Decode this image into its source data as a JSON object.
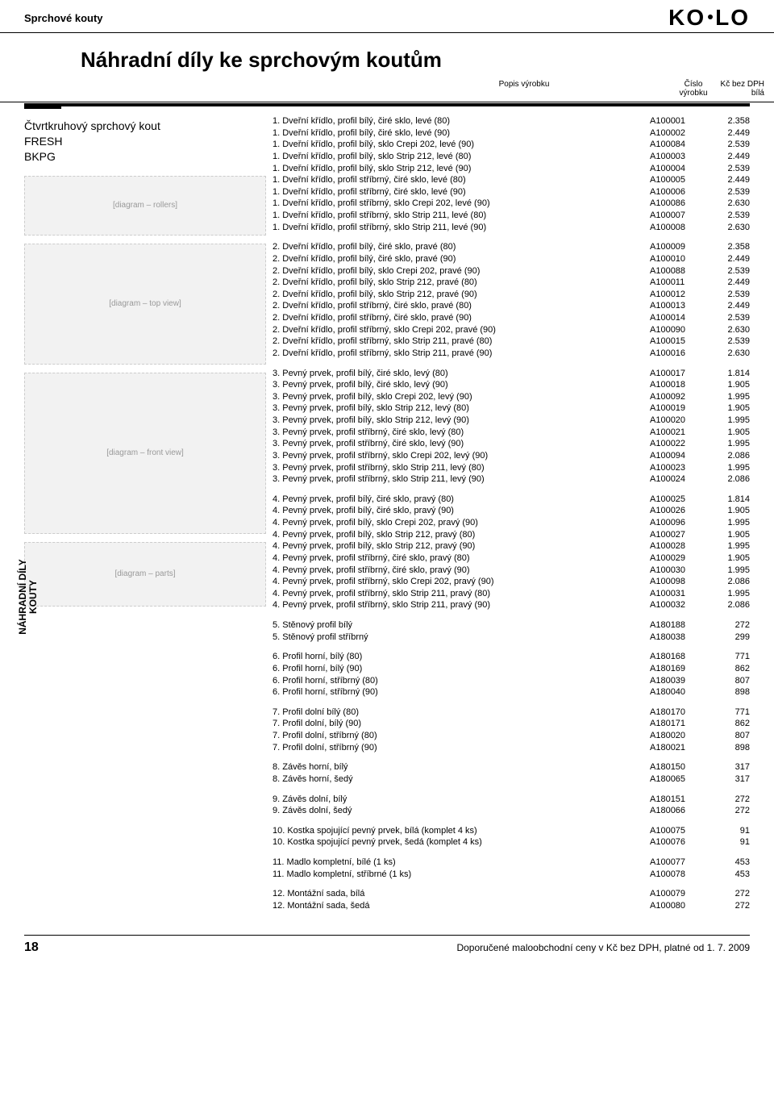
{
  "crumb": "Sprchové kouty",
  "logo": "KOLO",
  "heading": "Náhradní díly ke sprchovým koutům",
  "columns": {
    "c1": "Popis výrobku",
    "c2a": "Číslo",
    "c2b": "výrobku",
    "c3a": "Kč bez DPH",
    "c3b": "bílá"
  },
  "product": {
    "l1": "Čtvrtkruhový sprchový kout",
    "l2": "FRESH",
    "l3": "BKPG"
  },
  "diagrams": {
    "d1": "[diagram – rollers]",
    "d2": "[diagram – top view]",
    "d3": "[diagram – front view]",
    "d4": "[diagram – parts]"
  },
  "side_label": {
    "l1": "NÁHRADNÍ DÍLY",
    "l2": "KOUTY"
  },
  "groups": [
    [
      {
        "d": "1. Dveřní křídlo, profil bílý, čiré sklo, levé (80)",
        "c": "A100001",
        "p": "2.358"
      },
      {
        "d": "1. Dveřní křídlo, profil bílý, čiré sklo, levé (90)",
        "c": "A100002",
        "p": "2.449"
      },
      {
        "d": "1. Dveřní křídlo, profil bílý, sklo Crepi 202, levé (90)",
        "c": "A100084",
        "p": "2.539"
      },
      {
        "d": "1. Dveřní křídlo, profil bílý, sklo Strip 212, levé (80)",
        "c": "A100003",
        "p": "2.449"
      },
      {
        "d": "1. Dveřní křídlo, profil bílý, sklo Strip 212, levé (90)",
        "c": "A100004",
        "p": "2.539"
      },
      {
        "d": "1. Dveřní křídlo, profil stříbrný, čiré sklo, levé (80)",
        "c": "A100005",
        "p": "2.449"
      },
      {
        "d": "1. Dveřní křídlo, profil stříbrný, čiré sklo, levé (90)",
        "c": "A100006",
        "p": "2.539"
      },
      {
        "d": "1. Dveřní křídlo, profil stříbrný, sklo Crepi 202, levé (90)",
        "c": "A100086",
        "p": "2.630"
      },
      {
        "d": "1. Dveřní křídlo, profil stříbrný, sklo Strip 211, levé (80)",
        "c": "A100007",
        "p": "2.539"
      },
      {
        "d": "1. Dveřní křídlo, profil stříbrný, sklo Strip 211, levé (90)",
        "c": "A100008",
        "p": "2.630"
      }
    ],
    [
      {
        "d": "2. Dveřní křídlo, profil bílý, čiré sklo, pravé (80)",
        "c": "A100009",
        "p": "2.358"
      },
      {
        "d": "2. Dveřní křídlo, profil bílý, čiré sklo, pravé (90)",
        "c": "A100010",
        "p": "2.449"
      },
      {
        "d": "2. Dveřní křídlo, profil bílý, sklo Crepi 202, pravé (90)",
        "c": "A100088",
        "p": "2.539"
      },
      {
        "d": "2. Dveřní křídlo, profil bílý, sklo Strip 212, pravé (80)",
        "c": "A100011",
        "p": "2.449"
      },
      {
        "d": "2. Dveřní křídlo, profil bílý, sklo Strip 212, pravé (90)",
        "c": "A100012",
        "p": "2.539"
      },
      {
        "d": "2. Dveřní křídlo, profil stříbrný, čiré sklo, pravé (80)",
        "c": "A100013",
        "p": "2.449"
      },
      {
        "d": "2. Dveřní křídlo, profil stříbrný, čiré sklo, pravé (90)",
        "c": "A100014",
        "p": "2.539"
      },
      {
        "d": "2. Dveřní křídlo, profil stříbrný, sklo Crepi 202, pravé (90)",
        "c": "A100090",
        "p": "2.630"
      },
      {
        "d": "2. Dveřní křídlo, profil stříbrný, sklo Strip 211, pravé (80)",
        "c": "A100015",
        "p": "2.539"
      },
      {
        "d": "2. Dveřní křídlo, profil stříbrný, sklo Strip 211, pravé (90)",
        "c": "A100016",
        "p": "2.630"
      }
    ],
    [
      {
        "d": "3. Pevný prvek, profil bílý, čiré sklo, levý (80)",
        "c": "A100017",
        "p": "1.814"
      },
      {
        "d": "3. Pevný prvek, profil bílý, čiré sklo, levý (90)",
        "c": "A100018",
        "p": "1.905"
      },
      {
        "d": "3. Pevný prvek, profil bílý, sklo Crepi 202, levý (90)",
        "c": "A100092",
        "p": "1.995"
      },
      {
        "d": "3. Pevný prvek, profil bílý, sklo Strip 212, levý (80)",
        "c": "A100019",
        "p": "1.905"
      },
      {
        "d": "3. Pevný prvek, profil bílý, sklo Strip 212, levý (90)",
        "c": "A100020",
        "p": "1.995"
      },
      {
        "d": "3. Pevný prvek, profil stříbrný, čiré sklo, levý (80)",
        "c": "A100021",
        "p": "1.905"
      },
      {
        "d": "3. Pevný prvek, profil stříbrný, čiré sklo, levý (90)",
        "c": "A100022",
        "p": "1.995"
      },
      {
        "d": "3. Pevný prvek, profil stříbrný, sklo Crepi 202, levý (90)",
        "c": "A100094",
        "p": "2.086"
      },
      {
        "d": "3. Pevný prvek, profil stříbrný, sklo Strip 211, levý (80)",
        "c": "A100023",
        "p": "1.995"
      },
      {
        "d": "3. Pevný prvek, profil stříbrný, sklo Strip 211, levý (90)",
        "c": "A100024",
        "p": "2.086"
      }
    ],
    [
      {
        "d": "4. Pevný prvek, profil bílý, čiré sklo, pravý (80)",
        "c": "A100025",
        "p": "1.814"
      },
      {
        "d": "4. Pevný prvek, profil bílý, čiré sklo, pravý (90)",
        "c": "A100026",
        "p": "1.905"
      },
      {
        "d": "4. Pevný prvek, profil bílý, sklo Crepi 202, pravý (90)",
        "c": "A100096",
        "p": "1.995"
      },
      {
        "d": "4. Pevný prvek, profil bílý, sklo Strip 212, pravý (80)",
        "c": "A100027",
        "p": "1.905"
      },
      {
        "d": "4. Pevný prvek, profil bílý, sklo Strip 212, pravý (90)",
        "c": "A100028",
        "p": "1.995"
      },
      {
        "d": "4. Pevný prvek, profil stříbrný, čiré sklo, pravý (80)",
        "c": "A100029",
        "p": "1.905"
      },
      {
        "d": "4. Pevný prvek, profil stříbrný, čiré sklo, pravý (90)",
        "c": "A100030",
        "p": "1.995"
      },
      {
        "d": "4. Pevný prvek, profil stříbrný, sklo Crepi 202, pravý (90)",
        "c": "A100098",
        "p": "2.086"
      },
      {
        "d": "4. Pevný prvek, profil stříbrný, sklo Strip 211, pravý (80)",
        "c": "A100031",
        "p": "1.995"
      },
      {
        "d": "4. Pevný prvek, profil stříbrný, sklo Strip 211, pravý (90)",
        "c": "A100032",
        "p": "2.086"
      }
    ],
    [
      {
        "d": "5. Stěnový profil bílý",
        "c": "A180188",
        "p": "272"
      },
      {
        "d": "5. Stěnový profil stříbrný",
        "c": "A180038",
        "p": "299"
      }
    ],
    [
      {
        "d": "6. Profil horní, bílý (80)",
        "c": "A180168",
        "p": "771"
      },
      {
        "d": "6. Profil horní, bílý (90)",
        "c": "A180169",
        "p": "862"
      },
      {
        "d": "6. Profil horní, stříbrný (80)",
        "c": "A180039",
        "p": "807"
      },
      {
        "d": "6. Profil horní, stříbrný (90)",
        "c": "A180040",
        "p": "898"
      }
    ],
    [
      {
        "d": "7. Profil dolní bílý (80)",
        "c": "A180170",
        "p": "771"
      },
      {
        "d": "7. Profil dolní, bílý (90)",
        "c": "A180171",
        "p": "862"
      },
      {
        "d": "7. Profil dolní, stříbrný (80)",
        "c": "A180020",
        "p": "807"
      },
      {
        "d": "7. Profil dolní, stříbrný (90)",
        "c": "A180021",
        "p": "898"
      }
    ],
    [
      {
        "d": "8. Závěs horní, bílý",
        "c": "A180150",
        "p": "317"
      },
      {
        "d": "8. Závěs horní, šedý",
        "c": "A180065",
        "p": "317"
      }
    ],
    [
      {
        "d": "9. Závěs dolní, bílý",
        "c": "A180151",
        "p": "272"
      },
      {
        "d": "9. Závěs dolní, šedý",
        "c": "A180066",
        "p": "272"
      }
    ],
    [
      {
        "d": "10. Kostka spojující pevný prvek, bílá (komplet 4 ks)",
        "c": "A100075",
        "p": "91"
      },
      {
        "d": "10. Kostka spojující pevný prvek, šedá (komplet 4 ks)",
        "c": "A100076",
        "p": "91"
      }
    ],
    [
      {
        "d": "11. Madlo kompletní, bílé (1 ks)",
        "c": "A100077",
        "p": "453"
      },
      {
        "d": "11. Madlo kompletní, stříbrné (1 ks)",
        "c": "A100078",
        "p": "453"
      }
    ],
    [
      {
        "d": "12. Montážní sada, bílá",
        "c": "A100079",
        "p": "272"
      },
      {
        "d": "12. Montážní sada, šedá",
        "c": "A100080",
        "p": "272"
      }
    ]
  ],
  "footer": {
    "page": "18",
    "note": "Doporučené maloobchodní ceny v Kč bez DPH, platné od 1. 7. 2009"
  }
}
